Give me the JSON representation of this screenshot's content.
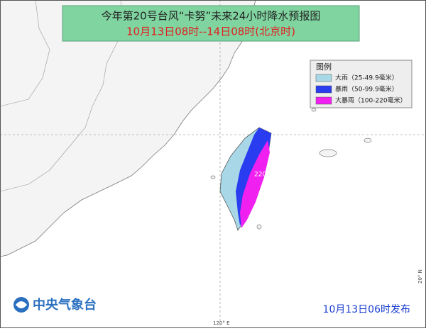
{
  "header": {
    "title": "今年第20号台风“卡努”未来24小时降水预报图",
    "subtitle": "10月13日08时--14日08时(北京时)"
  },
  "legend": {
    "title": "图例",
    "items": [
      {
        "label": "大雨（25-49.9毫米）",
        "color": "#a8d8e8"
      },
      {
        "label": "暴雨（50-99.9毫米）",
        "color": "#2a3cf0"
      },
      {
        "label": "大暴雨（100-220毫米）",
        "color": "#f020f0"
      }
    ]
  },
  "annotation": "220",
  "coords": {
    "lon": "120° E",
    "lat": "20° N"
  },
  "footer": {
    "agency": "中央气象台",
    "issued": "10月13日06时发布"
  }
}
